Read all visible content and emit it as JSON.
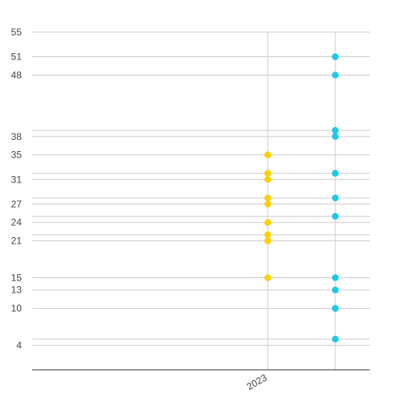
{
  "chart_data": {
    "type": "scatter",
    "title": "",
    "xlabel": "",
    "ylabel": "",
    "x_tick_labels": [
      "2023"
    ],
    "y_tick_labels": [
      "55",
      "51",
      "48",
      "38",
      "35",
      "31",
      "27",
      "24",
      "21",
      "15",
      "13",
      "10",
      "4"
    ],
    "ylim": [
      0,
      55
    ],
    "grid": true,
    "legend": "none",
    "series": [
      {
        "color": "#FFD000",
        "x_position": "2023",
        "values": [
          35,
          32,
          31,
          28,
          27,
          24,
          22,
          21,
          15
        ]
      },
      {
        "color": "#1EC8EB",
        "x_position": "after 2023",
        "values": [
          51,
          48,
          39,
          38,
          32,
          28,
          25,
          15,
          13,
          10,
          5
        ]
      }
    ],
    "colors": {
      "grid": "#cccccc",
      "axis": "#333333",
      "tick_text": "#444444"
    }
  }
}
